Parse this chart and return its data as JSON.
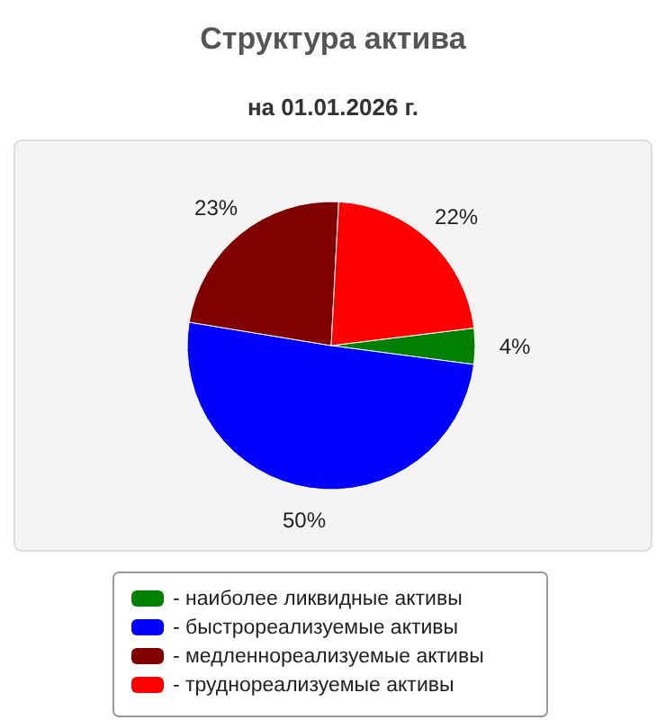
{
  "chart_data": {
    "type": "pie",
    "title": "Структура актива",
    "subtitle": "на 01.01.2026 г.",
    "categories": [
      "- наиболее ликвидные активы",
      "- быстрореализуемые активы",
      "- медленнореализуемые активы",
      "- труднореализуемые активы"
    ],
    "values": [
      4,
      50,
      23,
      22
    ],
    "colors": [
      "#008000",
      "#0000ff",
      "#800000",
      "#ff0000"
    ],
    "value_labels": [
      "4%",
      "50%",
      "23%",
      "22%"
    ],
    "legend": "bottom"
  }
}
